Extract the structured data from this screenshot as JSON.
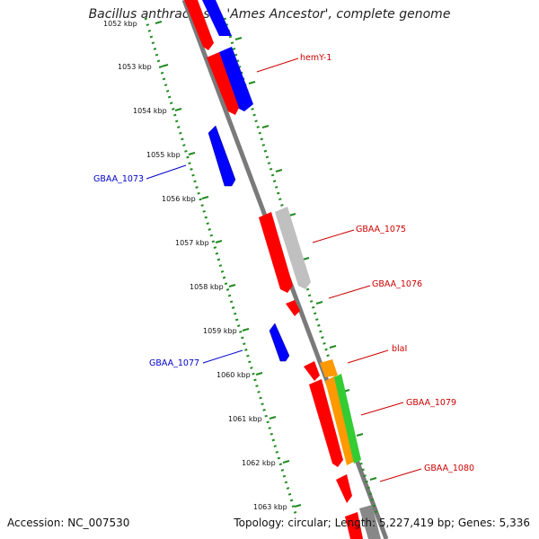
{
  "title": "Bacillus anthracis str. 'Ames Ancestor', complete genome",
  "footer": {
    "accession": "Accession: NC_007530",
    "summary": "Topology: circular; Length: 5,227,419 bp; Genes: 5,336"
  },
  "ticks": [
    "1052 kbp",
    "1053 kbp",
    "1054 kbp",
    "1055 kbp",
    "1056 kbp",
    "1057 kbp",
    "1058 kbp",
    "1059 kbp",
    "1060 kbp",
    "1061 kbp",
    "1062 kbp",
    "1063 kbp"
  ],
  "gene_labels": [
    {
      "text": "hemY-1",
      "strand": "forward"
    },
    {
      "text": "GBAA_1073",
      "strand": "reverse"
    },
    {
      "text": "GBAA_1075",
      "strand": "forward"
    },
    {
      "text": "GBAA_1076",
      "strand": "forward"
    },
    {
      "text": "GBAA_1077",
      "strand": "reverse"
    },
    {
      "text": "blaI",
      "strand": "forward"
    },
    {
      "text": "GBAA_1079",
      "strand": "forward"
    },
    {
      "text": "GBAA_1080",
      "strand": "forward"
    }
  ],
  "colors": {
    "forward_gene": "#ff0000",
    "reverse_gene": "#0000ff",
    "forward_label": "#cc0000",
    "reverse_label": "#0000cc",
    "backbone": "#7a7a7a",
    "tick_mark": "#228b22",
    "orange_feature": "#ff9900",
    "green_feature": "#33cc33",
    "gray_feature": "#c0c0c0"
  }
}
